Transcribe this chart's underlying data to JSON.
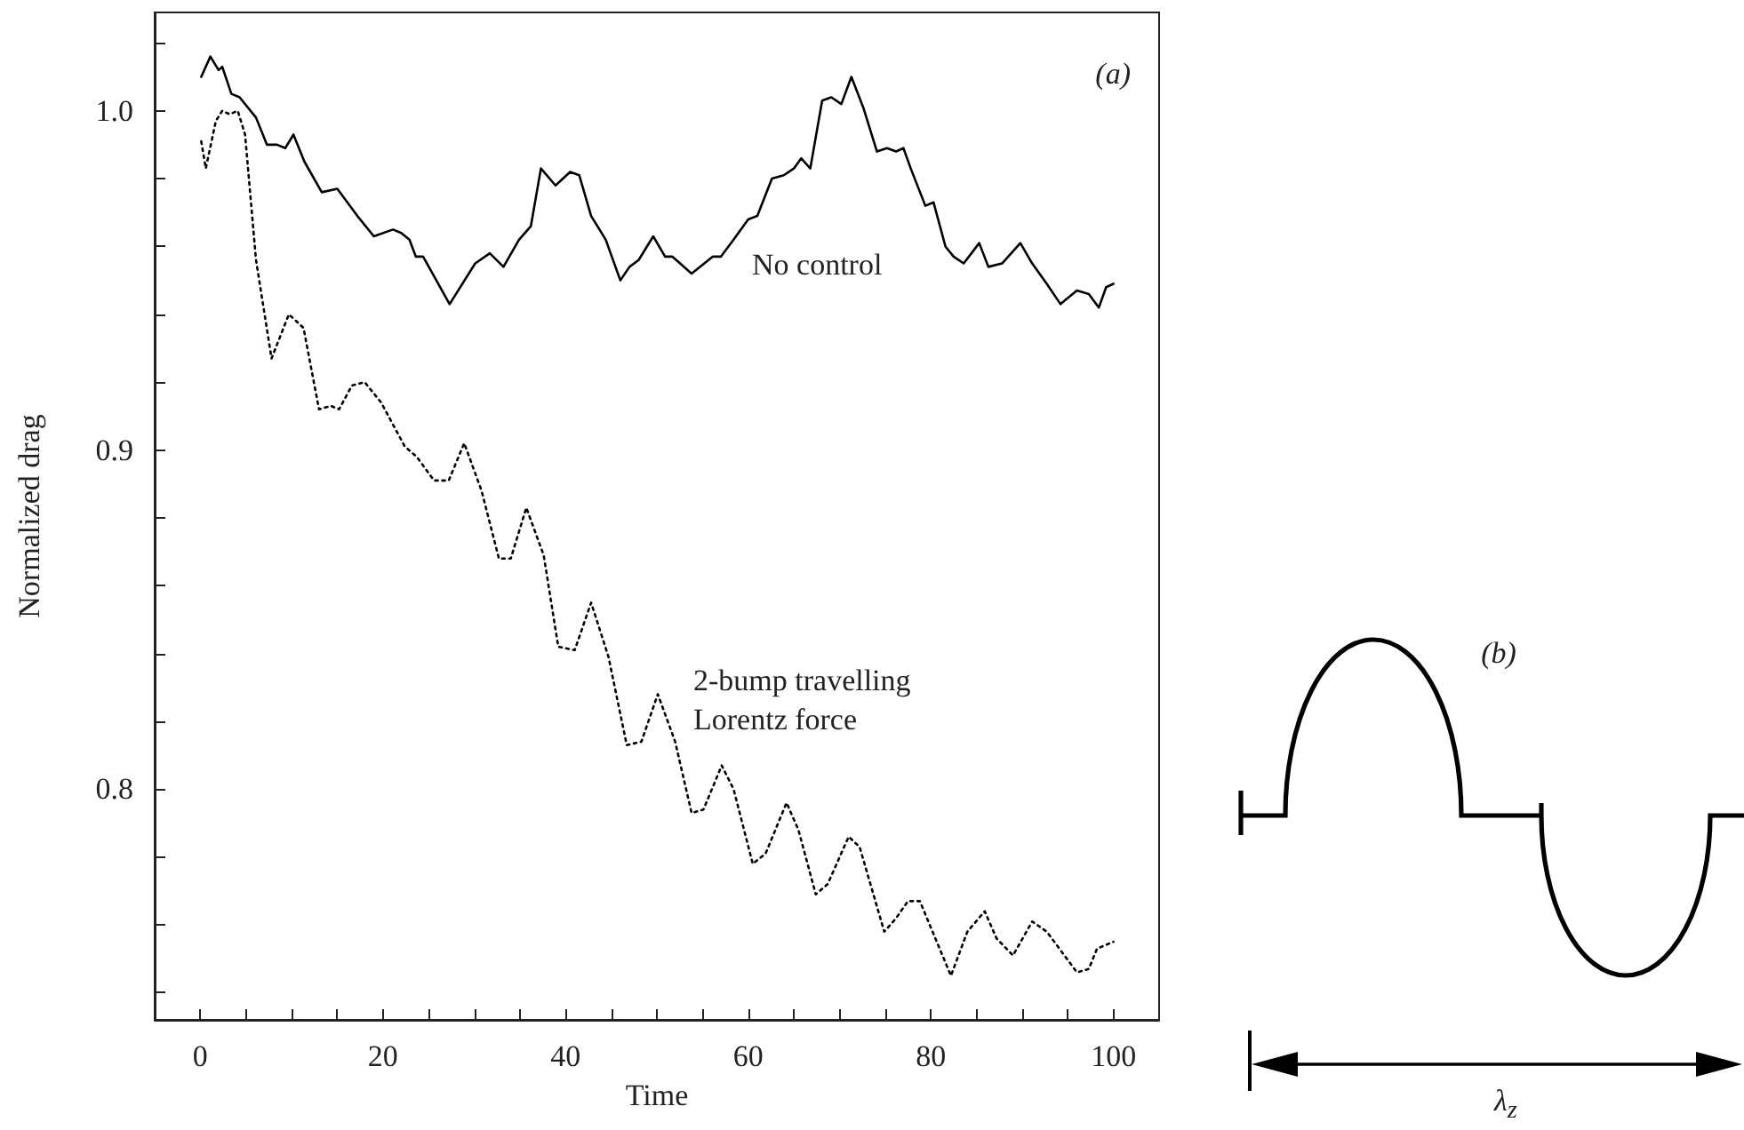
{
  "chart_data": [
    {
      "type": "line",
      "xlabel": "Time",
      "ylabel": "Normalized drag",
      "annotations": [
        "(a)"
      ],
      "xlim": [
        -5,
        105
      ],
      "ylim": [
        0.732,
        1.029
      ],
      "xticks": [
        0,
        {
          "value": 5,
          "label": null
        },
        {
          "value": 10,
          "label": null
        },
        {
          "value": 15,
          "label": null
        },
        20,
        {
          "value": 25,
          "label": null
        },
        {
          "value": 30,
          "label": null
        },
        {
          "value": 35,
          "label": null
        },
        40,
        {
          "value": 45,
          "label": null
        },
        {
          "value": 50,
          "label": null
        },
        {
          "value": 55,
          "label": null
        },
        60,
        {
          "value": 65,
          "label": null
        },
        {
          "value": 70,
          "label": null
        },
        {
          "value": 75,
          "label": null
        },
        80,
        {
          "value": 85,
          "label": null
        },
        {
          "value": 90,
          "label": null
        },
        {
          "value": 95,
          "label": null
        },
        100
      ],
      "yticks": [
        {
          "value": 0.74,
          "label": null
        },
        {
          "value": 0.76,
          "label": null
        },
        {
          "value": 0.78,
          "label": null
        },
        {
          "value": 0.8,
          "label": "0.8"
        },
        {
          "value": 0.82,
          "label": null
        },
        {
          "value": 0.84,
          "label": null
        },
        {
          "value": 0.86,
          "label": null
        },
        {
          "value": 0.88,
          "label": null
        },
        {
          "value": 0.9,
          "label": "0.9"
        },
        {
          "value": 0.92,
          "label": null
        },
        {
          "value": 0.94,
          "label": null
        },
        {
          "value": 0.96,
          "label": null
        },
        {
          "value": 0.98,
          "label": null
        },
        {
          "value": 1.0,
          "label": "1.0"
        },
        {
          "value": 1.02,
          "label": null
        }
      ],
      "grid": false,
      "legend": false,
      "marker": "none",
      "series": [
        {
          "name": "No control",
          "color": "#000000",
          "line_style": "solid",
          "x": [
            0.1,
            1.1,
            2.0,
            2.4,
            3.4,
            4.3,
            6.1,
            7.3,
            8.4,
            9.3,
            10.2,
            11.4,
            13.3,
            15.0,
            17.2,
            19.0,
            21.1,
            22.0,
            22.9,
            23.6,
            24.4,
            27.3,
            30.1,
            31.7,
            33.2,
            34.9,
            36.2,
            37.3,
            38.9,
            40.5,
            41.5,
            42.8,
            44.4,
            46.0,
            47.0,
            48.0,
            49.6,
            50.9,
            51.7,
            53.8,
            56.1,
            57.0,
            58.4,
            60.0,
            61.0,
            62.6,
            63.9,
            65.0,
            65.8,
            66.8,
            68.1,
            69.1,
            70.2,
            71.3,
            72.6,
            74.1,
            75.2,
            76.2,
            77.0,
            77.8,
            79.4,
            80.3,
            81.6,
            82.5,
            83.6,
            85.3,
            86.3,
            87.8,
            89.8,
            91.1,
            92.7,
            94.2,
            96.0,
            97.3,
            98.4,
            99.2,
            100.0
          ],
          "values": [
            1.01,
            1.016,
            1.012,
            1.013,
            1.005,
            1.004,
            0.998,
            0.99,
            0.99,
            0.989,
            0.993,
            0.985,
            0.976,
            0.977,
            0.969,
            0.963,
            0.965,
            0.964,
            0.962,
            0.957,
            0.957,
            0.943,
            0.955,
            0.958,
            0.954,
            0.962,
            0.966,
            0.983,
            0.978,
            0.982,
            0.981,
            0.969,
            0.962,
            0.95,
            0.954,
            0.956,
            0.963,
            0.957,
            0.957,
            0.952,
            0.957,
            0.957,
            0.962,
            0.968,
            0.969,
            0.98,
            0.981,
            0.983,
            0.986,
            0.983,
            1.003,
            1.004,
            1.002,
            1.01,
            1.001,
            0.988,
            0.989,
            0.988,
            0.989,
            0.983,
            0.972,
            0.973,
            0.96,
            0.957,
            0.955,
            0.961,
            0.954,
            0.955,
            0.961,
            0.955,
            0.949,
            0.943,
            0.947,
            0.946,
            0.942,
            0.948,
            0.949
          ]
        },
        {
          "name": "2-bump travelling Lorentz force",
          "color": "#000000",
          "line_style": "dotted",
          "x": [
            0.1,
            0.6,
            1.7,
            2.4,
            3.2,
            4.1,
            4.9,
            6.1,
            7.8,
            9.7,
            11.3,
            13.0,
            14.3,
            15.2,
            16.6,
            18.0,
            19.8,
            22.4,
            23.7,
            25.6,
            27.2,
            28.9,
            30.8,
            32.7,
            34.0,
            35.7,
            37.6,
            39.2,
            41.0,
            42.8,
            44.7,
            46.7,
            48.3,
            50.1,
            52.0,
            53.8,
            55.1,
            57.1,
            58.4,
            60.5,
            61.9,
            64.2,
            65.5,
            67.4,
            68.7,
            71.0,
            72.2,
            74.9,
            76.2,
            77.5,
            78.8,
            82.2,
            84.0,
            85.9,
            87.2,
            89.0,
            91.1,
            92.7,
            96.0,
            97.3,
            98.2,
            100.0
          ],
          "values": [
            0.991,
            0.983,
            0.997,
            1.0,
            0.999,
            1.0,
            0.993,
            0.956,
            0.927,
            0.94,
            0.936,
            0.912,
            0.913,
            0.912,
            0.919,
            0.92,
            0.914,
            0.901,
            0.898,
            0.891,
            0.891,
            0.902,
            0.888,
            0.868,
            0.868,
            0.883,
            0.869,
            0.842,
            0.841,
            0.855,
            0.839,
            0.813,
            0.814,
            0.828,
            0.814,
            0.793,
            0.794,
            0.807,
            0.8,
            0.778,
            0.781,
            0.796,
            0.788,
            0.769,
            0.772,
            0.786,
            0.783,
            0.758,
            0.762,
            0.767,
            0.767,
            0.745,
            0.758,
            0.764,
            0.756,
            0.751,
            0.761,
            0.758,
            0.746,
            0.747,
            0.753,
            0.755
          ]
        }
      ]
    },
    {
      "type": "other",
      "annotations": [
        "(b)",
        "λ$_{z}$"
      ]
    }
  ]
}
